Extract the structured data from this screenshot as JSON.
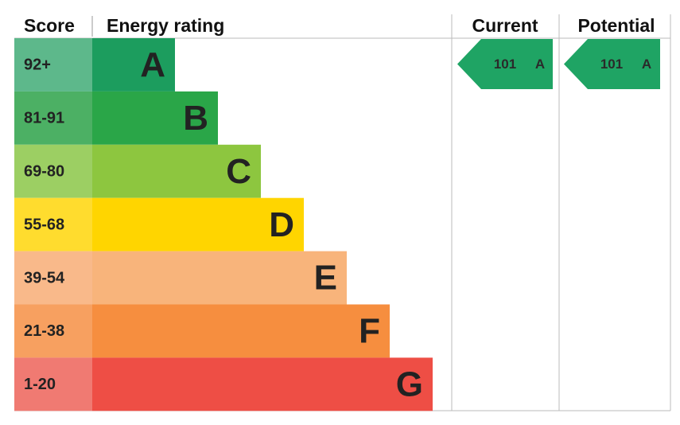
{
  "header": {
    "score": "Score",
    "energy_rating": "Energy rating",
    "current": "Current",
    "potential": "Potential"
  },
  "rows": [
    {
      "score": "92+",
      "letter": "A",
      "color": "#1c9d5e",
      "score_color": "#5db88b"
    },
    {
      "score": "81-91",
      "letter": "B",
      "color": "#2aa648",
      "score_color": "#4cb064"
    },
    {
      "score": "69-80",
      "letter": "C",
      "color": "#8dc63f",
      "score_color": "#9ccf63"
    },
    {
      "score": "55-68",
      "letter": "D",
      "color": "#ffd500",
      "score_color": "#ffdc2e"
    },
    {
      "score": "39-54",
      "letter": "E",
      "color": "#f8b47b",
      "score_color": "#f9b98a"
    },
    {
      "score": "21-38",
      "letter": "F",
      "color": "#f68e3f",
      "score_color": "#f7a060"
    },
    {
      "score": "1-20",
      "letter": "G",
      "color": "#ee4e45",
      "score_color": "#f07a72"
    }
  ],
  "current": {
    "value": 101,
    "letter": "A",
    "color": "#1fa464"
  },
  "potential": {
    "value": 101,
    "letter": "A",
    "color": "#1fa464"
  }
}
